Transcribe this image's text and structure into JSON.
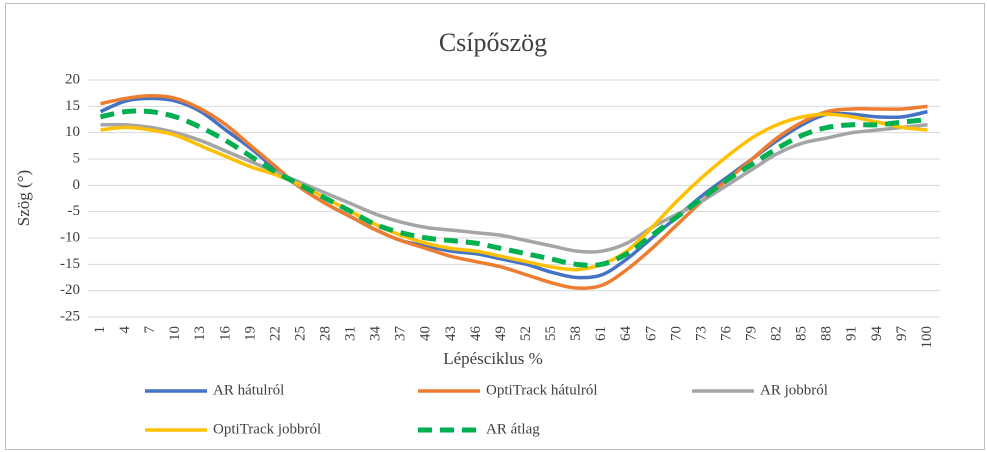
{
  "chart_data": {
    "type": "line",
    "title": "Csípőszög",
    "x_label": "Lépésciklus %",
    "y_label": "Szög (°)",
    "categories": [
      1,
      4,
      7,
      10,
      13,
      16,
      19,
      22,
      25,
      28,
      31,
      34,
      37,
      40,
      43,
      46,
      49,
      52,
      55,
      58,
      61,
      64,
      67,
      70,
      73,
      76,
      79,
      82,
      85,
      88,
      91,
      94,
      97,
      100
    ],
    "ylim": [
      -25,
      20
    ],
    "yticks": [
      -25,
      -20,
      -15,
      -10,
      -5,
      0,
      5,
      10,
      15,
      20
    ],
    "grid": true,
    "legend": "bottom",
    "series": [
      {
        "name": "AR hátulról",
        "color": "#4472c4",
        "dashed": false,
        "values": [
          14,
          16,
          16.5,
          16,
          14,
          10.5,
          7,
          3,
          -0.5,
          -3.5,
          -6,
          -8.5,
          -10.5,
          -11.5,
          -12.5,
          -13,
          -14,
          -15,
          -16.5,
          -17.5,
          -17,
          -14,
          -10,
          -6,
          -2,
          1.5,
          5,
          8.5,
          11.5,
          13.5,
          13.5,
          13,
          13,
          14
        ]
      },
      {
        "name": "OptiTrack hátulról",
        "color": "#ed7d31",
        "dashed": false,
        "values": [
          15.5,
          16.5,
          17,
          16.5,
          14.5,
          11.5,
          7.5,
          3.5,
          -0.5,
          -3.5,
          -6,
          -8.5,
          -10.5,
          -12,
          -13.5,
          -14.5,
          -15.5,
          -17,
          -18.5,
          -19.5,
          -19,
          -16,
          -12,
          -7.5,
          -3,
          1,
          5,
          9,
          12,
          14,
          14.5,
          14.5,
          14.5,
          15
        ]
      },
      {
        "name": "AR jobbról",
        "color": "#a5a5a5",
        "dashed": false,
        "values": [
          11.5,
          11.5,
          11,
          10,
          8.5,
          6.5,
          4.5,
          2.5,
          0.5,
          -1.5,
          -3.5,
          -5.5,
          -7,
          -8,
          -8.5,
          -9,
          -9.5,
          -10.5,
          -11.5,
          -12.5,
          -12.5,
          -11,
          -8,
          -5.5,
          -3,
          0,
          3,
          6,
          8,
          9,
          10,
          10.5,
          11,
          11.5
        ]
      },
      {
        "name": "OptiTrack jobbról",
        "color": "#ffc000",
        "dashed": false,
        "values": [
          10.5,
          11,
          10.5,
          9.5,
          7.5,
          5.5,
          3.5,
          2,
          0,
          -2.5,
          -5,
          -7.5,
          -9.5,
          -11,
          -12,
          -12.5,
          -13.5,
          -14.5,
          -15.5,
          -16,
          -15,
          -12.5,
          -8,
          -3,
          1.5,
          5.5,
          9,
          11.5,
          13,
          13.5,
          13,
          12,
          11,
          10.5
        ]
      },
      {
        "name": "AR átlag",
        "color": "#00b050",
        "dashed": true,
        "values": [
          13,
          14,
          14,
          13,
          11,
          8.5,
          5.5,
          2.5,
          0,
          -2.5,
          -5,
          -7.5,
          -9,
          -10,
          -10.5,
          -11,
          -12,
          -13,
          -14,
          -15,
          -15,
          -13,
          -9.5,
          -6,
          -2.5,
          1,
          4,
          7,
          9.5,
          11,
          11.5,
          11.5,
          12,
          12.5
        ]
      }
    ]
  }
}
